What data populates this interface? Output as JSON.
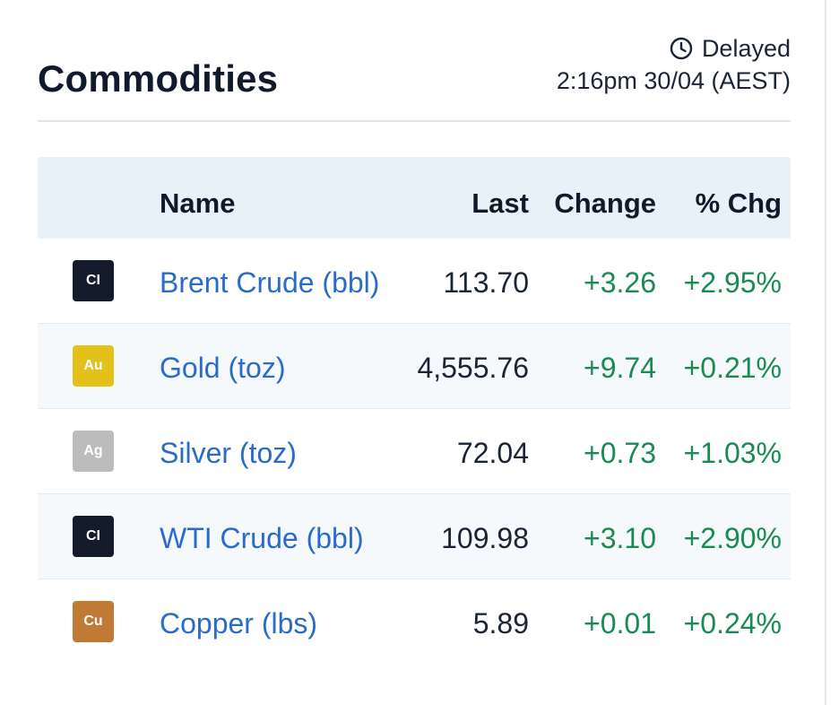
{
  "header": {
    "title": "Commodities",
    "status_label": "Delayed",
    "timestamp": "2:16pm 30/04 (AEST)"
  },
  "table": {
    "columns": {
      "name": "Name",
      "last": "Last",
      "change": "Change",
      "pct": "% Chg"
    },
    "rows": [
      {
        "badge": "CI",
        "badge_color": "#141c2c",
        "name": "Brent Crude (bbl)",
        "last": "113.70",
        "change": "+3.26",
        "pct": "+2.95%"
      },
      {
        "badge": "Au",
        "badge_color": "#e2c11a",
        "name": "Gold (toz)",
        "last": "4,555.76",
        "change": "+9.74",
        "pct": "+0.21%"
      },
      {
        "badge": "Ag",
        "badge_color": "#bcbcbc",
        "name": "Silver (toz)",
        "last": "72.04",
        "change": "+0.73",
        "pct": "+1.03%"
      },
      {
        "badge": "CI",
        "badge_color": "#141c2c",
        "name": "WTI Crude (bbl)",
        "last": "109.98",
        "change": "+3.10",
        "pct": "+2.90%"
      },
      {
        "badge": "Cu",
        "badge_color": "#c17a35",
        "name": "Copper (lbs)",
        "last": "5.89",
        "change": "+0.01",
        "pct": "+0.24%"
      }
    ]
  },
  "colors": {
    "positive": "#1a8a53",
    "link": "#2a6bc9",
    "header_bg": "#e9f1f8"
  }
}
